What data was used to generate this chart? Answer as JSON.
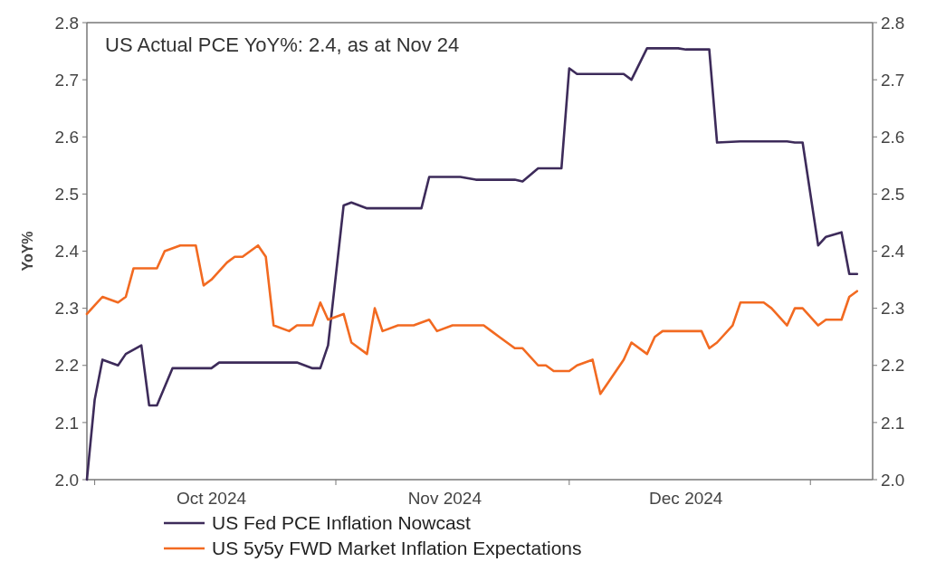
{
  "chart_data": {
    "type": "line",
    "ylabel": "YoY%",
    "annotations": [
      "US Actual PCE YoY%: 2.4, as at Nov 24"
    ],
    "xlim": [
      "2024-09-30",
      "2025-01-09"
    ],
    "xticks": [
      {
        "value": "2024-10-01",
        "label": null
      },
      {
        "value": "2024-10-16",
        "label": "Oct 2024"
      },
      {
        "value": "2024-11-01",
        "label": null
      },
      {
        "value": "2024-11-15",
        "label": "Nov 2024"
      },
      {
        "value": "2024-12-01",
        "label": null
      },
      {
        "value": "2024-12-16",
        "label": "Dec 2024"
      },
      {
        "value": "2025-01-01",
        "label": null
      }
    ],
    "ylim": [
      2.0,
      2.8
    ],
    "yticks": [
      {
        "value": 2,
        "label": "2.0"
      },
      2.1,
      2.2,
      2.3,
      2.4,
      2.5,
      2.6,
      2.7,
      2.8
    ],
    "y2lim": [
      2.0,
      2.8
    ],
    "y2ticks": [
      {
        "value": 2,
        "label": "2.0"
      },
      2.1,
      2.2,
      2.3,
      2.4,
      2.5,
      2.6,
      2.7,
      2.8
    ],
    "grid": false,
    "legend": "bottom",
    "line_style": "solid",
    "series": [
      {
        "name": "US Fed PCE Inflation Nowcast",
        "color": "#3d2b5a",
        "x": [
          "2024-09-30",
          "2024-10-01",
          "2024-10-02",
          "2024-10-04",
          "2024-10-05",
          "2024-10-07",
          "2024-10-08",
          "2024-10-09",
          "2024-10-11",
          "2024-10-16",
          "2024-10-17",
          "2024-10-21",
          "2024-10-22",
          "2024-10-27",
          "2024-10-29",
          "2024-10-30",
          "2024-10-31",
          "2024-11-02",
          "2024-11-03",
          "2024-11-05",
          "2024-11-12",
          "2024-11-13",
          "2024-11-17",
          "2024-11-19",
          "2024-11-24",
          "2024-11-25",
          "2024-11-27",
          "2024-11-30",
          "2024-12-01",
          "2024-12-02",
          "2024-12-08",
          "2024-12-09",
          "2024-12-11",
          "2024-12-15",
          "2024-12-16",
          "2024-12-19",
          "2024-12-20",
          "2024-12-23",
          "2024-12-29",
          "2024-12-30",
          "2024-12-31",
          "2025-01-02",
          "2025-01-03",
          "2025-01-05",
          "2025-01-06",
          "2025-01-07"
        ],
        "values": [
          2.0,
          2.14,
          2.21,
          2.2,
          2.22,
          2.235,
          2.13,
          2.13,
          2.195,
          2.195,
          2.205,
          2.205,
          2.205,
          2.205,
          2.195,
          2.195,
          2.235,
          2.48,
          2.485,
          2.475,
          2.475,
          2.53,
          2.53,
          2.525,
          2.525,
          2.522,
          2.545,
          2.545,
          2.72,
          2.71,
          2.71,
          2.7,
          2.755,
          2.755,
          2.753,
          2.753,
          2.59,
          2.592,
          2.592,
          2.59,
          2.59,
          2.41,
          2.425,
          2.433,
          2.36,
          2.36
        ]
      },
      {
        "name": "US 5y5y FWD Market Inflation Expectations",
        "color": "#f26a21",
        "x": [
          "2024-09-30",
          "2024-10-01",
          "2024-10-02",
          "2024-10-04",
          "2024-10-05",
          "2024-10-06",
          "2024-10-09",
          "2024-10-10",
          "2024-10-12",
          "2024-10-14",
          "2024-10-15",
          "2024-10-16",
          "2024-10-18",
          "2024-10-19",
          "2024-10-20",
          "2024-10-22",
          "2024-10-23",
          "2024-10-24",
          "2024-10-26",
          "2024-10-27",
          "2024-10-29",
          "2024-10-30",
          "2024-10-31",
          "2024-11-02",
          "2024-11-03",
          "2024-11-05",
          "2024-11-06",
          "2024-11-07",
          "2024-11-09",
          "2024-11-11",
          "2024-11-13",
          "2024-11-14",
          "2024-11-16",
          "2024-11-20",
          "2024-11-21",
          "2024-11-22",
          "2024-11-24",
          "2024-11-25",
          "2024-11-27",
          "2024-11-28",
          "2024-11-29",
          "2024-12-01",
          "2024-12-02",
          "2024-12-04",
          "2024-12-05",
          "2024-12-06",
          "2024-12-08",
          "2024-12-09",
          "2024-12-11",
          "2024-12-12",
          "2024-12-13",
          "2024-12-18",
          "2024-12-19",
          "2024-12-20",
          "2024-12-22",
          "2024-12-23",
          "2024-12-26",
          "2024-12-27",
          "2024-12-29",
          "2024-12-30",
          "2024-12-31",
          "2025-01-02",
          "2025-01-03",
          "2025-01-05",
          "2025-01-06",
          "2025-01-07"
        ],
        "values": [
          2.29,
          2.305,
          2.32,
          2.31,
          2.32,
          2.37,
          2.37,
          2.4,
          2.41,
          2.41,
          2.34,
          2.35,
          2.38,
          2.39,
          2.39,
          2.41,
          2.39,
          2.27,
          2.26,
          2.27,
          2.27,
          2.31,
          2.28,
          2.29,
          2.24,
          2.22,
          2.3,
          2.26,
          2.27,
          2.27,
          2.28,
          2.26,
          2.27,
          2.27,
          2.26,
          2.25,
          2.23,
          2.23,
          2.2,
          2.2,
          2.19,
          2.19,
          2.2,
          2.21,
          2.15,
          2.17,
          2.21,
          2.24,
          2.22,
          2.25,
          2.26,
          2.26,
          2.23,
          2.24,
          2.27,
          2.31,
          2.31,
          2.3,
          2.27,
          2.3,
          2.3,
          2.27,
          2.28,
          2.28,
          2.32,
          2.33
        ]
      }
    ]
  }
}
